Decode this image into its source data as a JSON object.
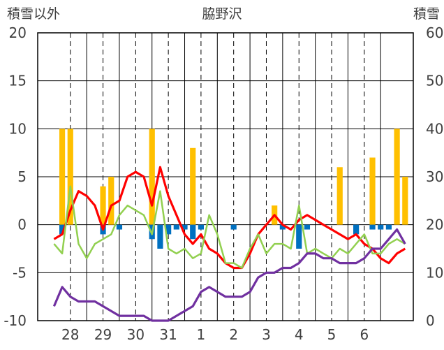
{
  "chart_data": {
    "type": "line",
    "title": "脇野沢",
    "ylabel_left": "積雪以外",
    "ylabel_right": "積雪",
    "ylim_left": [
      -10,
      20
    ],
    "ylim_right": [
      0,
      60
    ],
    "yticks_left": [
      "20",
      "15",
      "10",
      "5",
      "0",
      "-5",
      "-10"
    ],
    "yticks_right": [
      "60",
      "50",
      "40",
      "30",
      "20",
      "10",
      "0"
    ],
    "x_day_labels": [
      "28",
      "29",
      "30",
      "31",
      "1",
      "2",
      "3",
      "4",
      "5",
      "6"
    ],
    "x_hours": [
      0,
      6,
      12,
      18,
      24,
      30,
      36,
      42,
      48,
      54,
      60,
      66,
      72,
      78,
      84,
      90,
      96,
      102,
      108,
      114,
      120,
      126,
      132,
      138,
      144,
      150,
      156,
      162,
      168,
      174,
      180,
      186,
      192,
      198,
      204,
      210,
      216,
      222,
      228,
      234,
      240,
      246,
      252,
      258
    ],
    "grid": true,
    "series": [
      {
        "name": "",
        "axis": "left",
        "color": "#ff0000",
        "values": [
          -1.5,
          -1.0,
          1.5,
          3.5,
          3.0,
          2.0,
          -0.5,
          2.0,
          2.5,
          5.0,
          5.5,
          5.0,
          2.0,
          6.0,
          3.0,
          1.0,
          -1.0,
          -2.0,
          -1.0,
          -2.5,
          -3.0,
          -4.0,
          -4.5,
          -4.5,
          -3.0,
          -1.0,
          0.0,
          1.0,
          0.0,
          -0.5,
          0.5,
          1.0,
          0.5,
          0.0,
          -0.5,
          -1.0,
          -1.5,
          -1.0,
          -2.0,
          -2.5,
          -3.5,
          -4.0,
          -3.0,
          -2.5
        ]
      },
      {
        "name": "",
        "axis": "left",
        "color": "#92d050",
        "values": [
          -2.0,
          -3.0,
          4.0,
          -2.0,
          -3.5,
          -2.0,
          -1.5,
          -1.0,
          1.0,
          2.0,
          1.5,
          1.0,
          -1.0,
          3.5,
          -2.5,
          -3.0,
          -2.5,
          -3.5,
          -3.0,
          1.0,
          -1.0,
          -4.0,
          -4.0,
          -4.5,
          -2.5,
          -1.0,
          -3.0,
          -2.0,
          -2.0,
          -2.5,
          2.0,
          -3.0,
          -2.5,
          -3.0,
          -3.5,
          -2.5,
          -3.0,
          -2.0,
          -1.0,
          -3.0,
          -3.0,
          -2.0,
          -1.5,
          -2.0
        ]
      },
      {
        "name": "",
        "axis": "right",
        "color": "#7030a0",
        "values": [
          3,
          7,
          5,
          4,
          4,
          4,
          3,
          2,
          1,
          1,
          1,
          1,
          0,
          0,
          0,
          1,
          2,
          3,
          6,
          7,
          6,
          5,
          5,
          5,
          6,
          9,
          10,
          10,
          11,
          11,
          12,
          14,
          14,
          13,
          13,
          12,
          12,
          12,
          13,
          15,
          15,
          17,
          19,
          16
        ]
      },
      {
        "name": "",
        "axis": "left",
        "type": "bar",
        "color": "#ffc000",
        "values": [
          0,
          10,
          10,
          0,
          0,
          0,
          4,
          5,
          0,
          0,
          0,
          0,
          10,
          0,
          0,
          0,
          0,
          8,
          0,
          0,
          0,
          0,
          0,
          0,
          0,
          0,
          0,
          2,
          0,
          0,
          0,
          0,
          0,
          0,
          0,
          6,
          0,
          0,
          0,
          7,
          0,
          0,
          10,
          5
        ]
      },
      {
        "name": "",
        "axis": "left",
        "type": "bar",
        "color": "#0070c0",
        "values": [
          0,
          -1,
          0,
          0,
          0,
          0,
          -1,
          0,
          -0.5,
          0,
          0,
          0,
          -1.5,
          -2.5,
          -1,
          -0.5,
          -0.5,
          -1.5,
          -0.5,
          0,
          0,
          0,
          -0.5,
          0,
          0,
          0,
          0,
          0,
          -0.5,
          0,
          -2.5,
          -0.5,
          0,
          0,
          0,
          0,
          0,
          -1,
          0,
          -0.5,
          -0.5,
          -0.5,
          0,
          0
        ]
      }
    ]
  }
}
